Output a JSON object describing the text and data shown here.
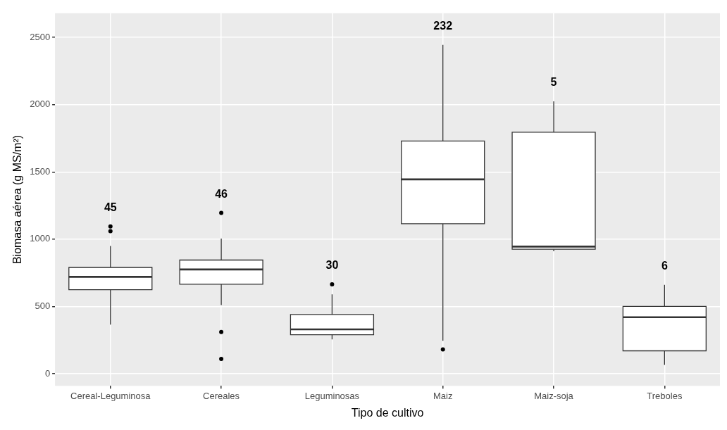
{
  "chart_data": {
    "type": "box",
    "xlabel": "Tipo de cultivo",
    "ylabel": "Biomasa aérea (g MS/m²)",
    "categories": [
      "Cereal-Leguminosa",
      "Cereales",
      "Leguminosas",
      "Maiz",
      "Maiz-soja",
      "Treboles"
    ],
    "boxes": [
      {
        "low": 365,
        "q1": 625,
        "median": 720,
        "q3": 790,
        "high": 950,
        "outliers": [
          1060,
          1095
        ]
      },
      {
        "low": 510,
        "q1": 665,
        "median": 775,
        "q3": 845,
        "high": 1005,
        "outliers": [
          1195,
          310,
          110
        ]
      },
      {
        "low": 255,
        "q1": 290,
        "median": 330,
        "q3": 440,
        "high": 590,
        "outliers": [
          665
        ]
      },
      {
        "low": 245,
        "q1": 1115,
        "median": 1445,
        "q3": 1730,
        "high": 2445,
        "outliers": [
          180
        ]
      },
      {
        "low": 910,
        "q1": 925,
        "median": 945,
        "q3": 1795,
        "high": 2025
      },
      {
        "low": 65,
        "q1": 170,
        "median": 420,
        "q3": 500,
        "high": 660
      }
    ],
    "annotations": [
      "45",
      "46",
      "30",
      "232",
      "5",
      "6"
    ],
    "ylim": [
      -90,
      2680
    ],
    "yticks": [
      0,
      500,
      1000,
      1500,
      2000,
      2500
    ],
    "grid": true
  }
}
